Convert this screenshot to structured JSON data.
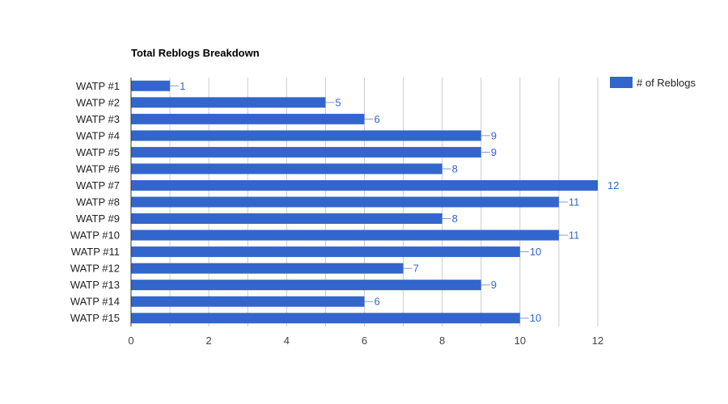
{
  "chart_data": {
    "type": "bar",
    "orientation": "horizontal",
    "title": "Total Reblogs Breakdown",
    "categories": [
      "WATP #1",
      "WATP #2",
      "WATP #3",
      "WATP #4",
      "WATP #5",
      "WATP #6",
      "WATP #7",
      "WATP #8",
      "WATP #9",
      "WATP #10",
      "WATP #11",
      "WATP #12",
      "WATP #13",
      "WATP #14",
      "WATP #15"
    ],
    "series": [
      {
        "name": "# of Reblogs",
        "values": [
          1,
          5,
          6,
          9,
          9,
          8,
          12,
          11,
          8,
          11,
          10,
          7,
          9,
          6,
          10
        ],
        "color": "#3366cc"
      }
    ],
    "xlabel": "",
    "ylabel": "",
    "xlim": [
      0,
      12
    ],
    "x_ticks": [
      0,
      2,
      4,
      6,
      8,
      10,
      12
    ],
    "grid": true,
    "legend_position": "right",
    "data_labels": true
  },
  "colors": {
    "bar": "#3366cc",
    "grid": "#cccccc",
    "axis": "#333333",
    "data_label": "#3366cc"
  }
}
